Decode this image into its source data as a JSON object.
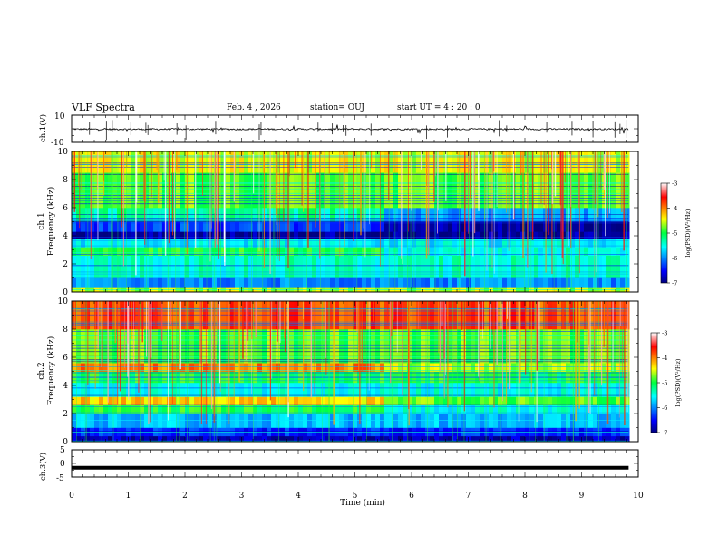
{
  "header": {
    "title": "VLF Spectra",
    "date": "Feb. 4 , 2026",
    "station": "station= OUJ",
    "start": "start UT = 4 : 20 : 0"
  },
  "colors": {
    "frame": "#000000",
    "background": "#ffffff"
  },
  "chart_data": [
    {
      "type": "line",
      "ylabel": "ch.1(V)",
      "ylim": [
        -10,
        10
      ],
      "yticks": [
        "10",
        "-10"
      ],
      "xlim": [
        0,
        10
      ],
      "baseline": -0.3,
      "noise_amplitude": 1.2
    },
    {
      "type": "heatmap",
      "ylabel": "ch.1\nFrequency (kHz)",
      "ylabel_lines": [
        "ch.1",
        "Frequency (kHz)"
      ],
      "ylim": [
        0,
        10
      ],
      "yticks": [
        "0",
        "2",
        "4",
        "6",
        "8",
        "10"
      ],
      "xlim": [
        0,
        10
      ],
      "x_data_end": 9.83,
      "regime_change_min": 5.45,
      "colorbar": {
        "label": "log(PSD)(V²/Hz)",
        "ticks": [
          "-3",
          "-4",
          "-5",
          "-6",
          "-7"
        ],
        "range": [
          -7,
          -3
        ]
      },
      "bands": [
        {
          "f": [
            0.0,
            0.3
          ],
          "v": -4.6
        },
        {
          "f": [
            0.3,
            1.0
          ],
          "v": -6.0
        },
        {
          "f": [
            1.0,
            2.6
          ],
          "v": -5.4
        },
        {
          "f": [
            2.6,
            3.2
          ],
          "v": -5.0
        },
        {
          "f": [
            3.2,
            3.8
          ],
          "v": -5.6
        },
        {
          "f": [
            3.8,
            4.3
          ],
          "v": -6.9
        },
        {
          "f": [
            4.3,
            5.0
          ],
          "v": -6.3
        },
        {
          "f": [
            5.0,
            6.0
          ],
          "v": -5.3
        },
        {
          "f": [
            6.0,
            8.5
          ],
          "v": -4.8
        },
        {
          "f": [
            8.5,
            10.0
          ],
          "v": -4.5
        }
      ]
    },
    {
      "type": "heatmap",
      "ylabel": "ch.2\nFrequency (kHz)",
      "ylabel_lines": [
        "ch.2",
        "Frequency (kHz)"
      ],
      "ylim": [
        0,
        10
      ],
      "yticks": [
        "0",
        "2",
        "4",
        "6",
        "8",
        "10"
      ],
      "xlim": [
        0,
        10
      ],
      "x_data_end": 9.83,
      "regime_change_min": 5.45,
      "colorbar": {
        "label": "log(PSD)(V²/Hz)",
        "ticks": [
          "-3",
          "-4",
          "-5",
          "-6",
          "-7"
        ],
        "range": [
          -7,
          -3
        ]
      },
      "bands": [
        {
          "f": [
            0.0,
            0.4
          ],
          "v": -6.8
        },
        {
          "f": [
            0.4,
            1.0
          ],
          "v": -6.4
        },
        {
          "f": [
            1.0,
            2.0
          ],
          "v": -5.8
        },
        {
          "f": [
            2.0,
            2.6
          ],
          "v": -5.0
        },
        {
          "f": [
            2.6,
            3.2
          ],
          "v": -4.3
        },
        {
          "f": [
            3.2,
            4.2
          ],
          "v": -5.5
        },
        {
          "f": [
            4.2,
            5.0
          ],
          "v": -5.0
        },
        {
          "f": [
            5.0,
            5.6
          ],
          "v": -4.0
        },
        {
          "f": [
            5.6,
            8.0
          ],
          "v": -4.8
        },
        {
          "f": [
            8.0,
            10.0
          ],
          "v": -3.8
        }
      ]
    },
    {
      "type": "line",
      "ylabel": "ch.3(V)",
      "ylim": [
        -5,
        5
      ],
      "yticks": [
        "5",
        "0",
        "-5"
      ],
      "xlim": [
        0,
        10
      ],
      "xticks": [
        "0",
        "1",
        "2",
        "3",
        "4",
        "5",
        "6",
        "7",
        "8",
        "9",
        "10"
      ],
      "xlabel": "Time (min)",
      "baseline": -1.6,
      "x_data_end": 9.83
    }
  ]
}
